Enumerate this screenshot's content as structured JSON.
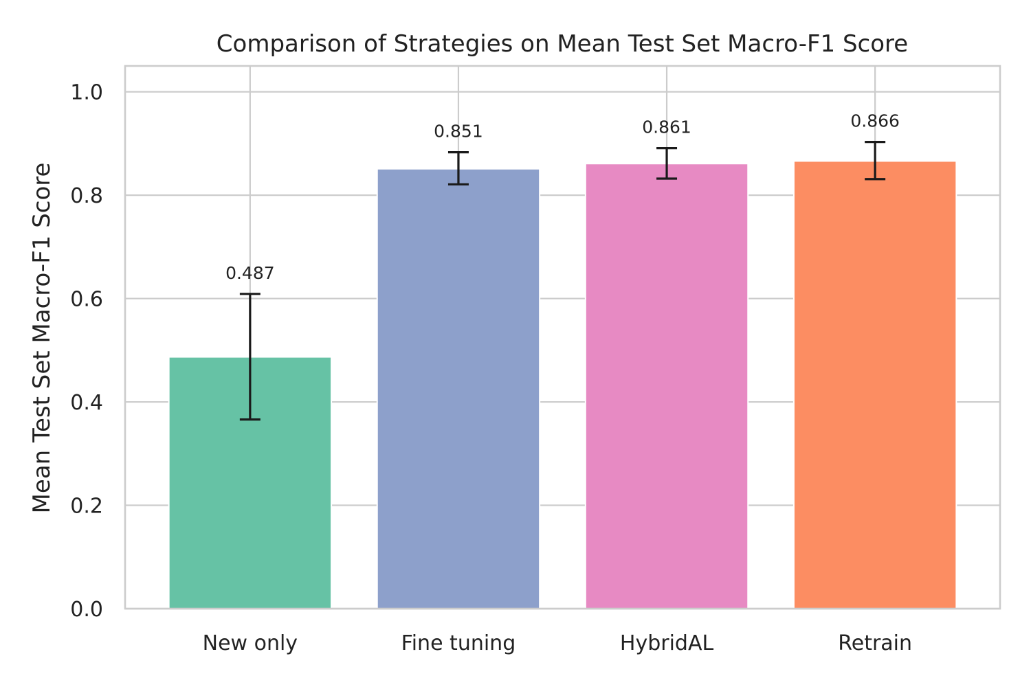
{
  "chart_data": {
    "type": "bar",
    "title": "Comparison of Strategies on Mean Test Set Macro-F1 Score",
    "xlabel": "",
    "ylabel": "Mean Test Set Macro-F1 Score",
    "categories": [
      "New only",
      "Fine tuning",
      "HybridAL",
      "Retrain"
    ],
    "values": [
      0.487,
      0.851,
      0.861,
      0.866
    ],
    "value_labels": [
      "0.487",
      "0.851",
      "0.861",
      "0.866"
    ],
    "error_low": [
      0.366,
      0.821,
      0.832,
      0.831
    ],
    "error_high": [
      0.609,
      0.883,
      0.891,
      0.903
    ],
    "colors": [
      "#66c2a5",
      "#8da0cb",
      "#e78ac3",
      "#fc8d62"
    ],
    "ylim": [
      0,
      1.05
    ],
    "yticks": [
      0.0,
      0.2,
      0.4,
      0.6,
      0.8,
      1.0
    ],
    "ytick_labels": [
      "0.0",
      "0.2",
      "0.4",
      "0.6",
      "0.8",
      "1.0"
    ],
    "grid": true,
    "legend": false
  }
}
